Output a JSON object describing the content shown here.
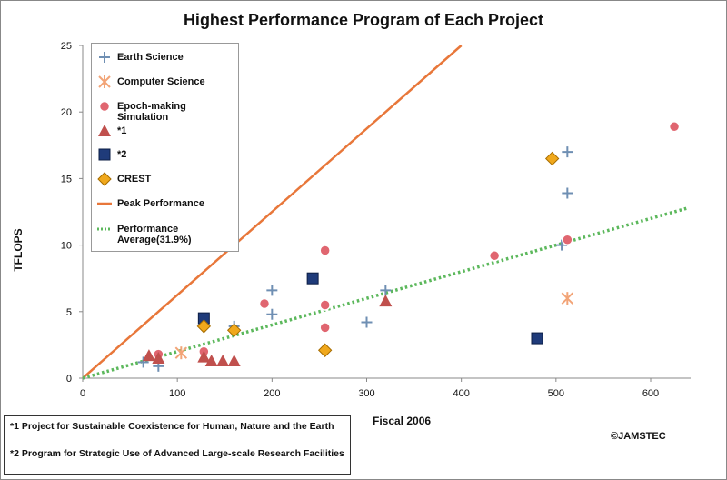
{
  "chart_data": {
    "type": "scatter",
    "title": "Highest Performance Program of Each Project",
    "xlabel": "Fiscal 2006",
    "ylabel": "TFLOPS",
    "xlim": [
      0,
      640
    ],
    "ylim": [
      0,
      25
    ],
    "x_ticks": [
      0,
      100,
      200,
      300,
      400,
      500,
      600
    ],
    "y_ticks": [
      0,
      5,
      10,
      15,
      20,
      25
    ],
    "grid": false,
    "legend_position": "top-left",
    "series": [
      {
        "name": "Earth Science",
        "marker": "plus",
        "color": "#6f8fb3",
        "points": [
          [
            64,
            1.2
          ],
          [
            80,
            0.9
          ],
          [
            160,
            3.9
          ],
          [
            200,
            4.8
          ],
          [
            200,
            6.6
          ],
          [
            300,
            4.2
          ],
          [
            320,
            6.6
          ],
          [
            506,
            10.0
          ],
          [
            512,
            13.9
          ],
          [
            512,
            17.0
          ]
        ]
      },
      {
        "name": "Computer Science",
        "marker": "asterisk",
        "color": "#f2a477",
        "points": [
          [
            104,
            1.9
          ],
          [
            512,
            6.0
          ]
        ]
      },
      {
        "name": "Epoch-making Simulation",
        "marker": "circle",
        "color": "#e06670",
        "points": [
          [
            80,
            1.8
          ],
          [
            128,
            2.0
          ],
          [
            192,
            5.6
          ],
          [
            256,
            9.6
          ],
          [
            256,
            5.5
          ],
          [
            256,
            3.8
          ],
          [
            435,
            9.2
          ],
          [
            512,
            10.4
          ],
          [
            625,
            18.9
          ]
        ]
      },
      {
        "name": "*1",
        "marker": "triangle",
        "color": "#c0504d",
        "points": [
          [
            70,
            1.7
          ],
          [
            80,
            1.5
          ],
          [
            128,
            1.6
          ],
          [
            136,
            1.3
          ],
          [
            148,
            1.3
          ],
          [
            160,
            1.3
          ],
          [
            320,
            5.8
          ]
        ]
      },
      {
        "name": "*2",
        "marker": "square",
        "color": "#1f3b7a",
        "points": [
          [
            128,
            4.5
          ],
          [
            243,
            7.5
          ],
          [
            480,
            3.0
          ]
        ]
      },
      {
        "name": "CREST",
        "marker": "diamond",
        "color": "#f0a81c",
        "points": [
          [
            128,
            3.9
          ],
          [
            160,
            3.6
          ],
          [
            256,
            2.1
          ],
          [
            496,
            16.5
          ]
        ]
      }
    ],
    "lines": [
      {
        "name": "Peak Performance",
        "style": "solid",
        "color": "#e8773a",
        "points": [
          [
            0,
            0
          ],
          [
            400,
            25
          ]
        ]
      },
      {
        "name": "Performance Average(31.9%)",
        "style": "dotted",
        "color": "#5cb85c",
        "points": [
          [
            0,
            0
          ],
          [
            640,
            12.8
          ]
        ]
      }
    ]
  },
  "legend": {
    "items": [
      {
        "label": "Earth Science",
        "marker": "plus"
      },
      {
        "label": "Computer Science",
        "marker": "asterisk"
      },
      {
        "label": "Epoch-making Simulation",
        "marker": "circle"
      },
      {
        "label": "*1",
        "marker": "triangle"
      },
      {
        "label": "*2",
        "marker": "square"
      },
      {
        "label": "CREST",
        "marker": "diamond"
      },
      {
        "label": "Peak Performance",
        "marker": "solid-line"
      },
      {
        "label": "Performance Average(31.9%)",
        "marker": "dotted-line"
      }
    ]
  },
  "notes": {
    "note1": "*1   Project for Sustainable Coexistence for Human, Nature and the Earth",
    "note2": "*2   Program for Strategic Use of Advanced Large-scale Research Facilities"
  },
  "copyright": "©JAMSTEC"
}
